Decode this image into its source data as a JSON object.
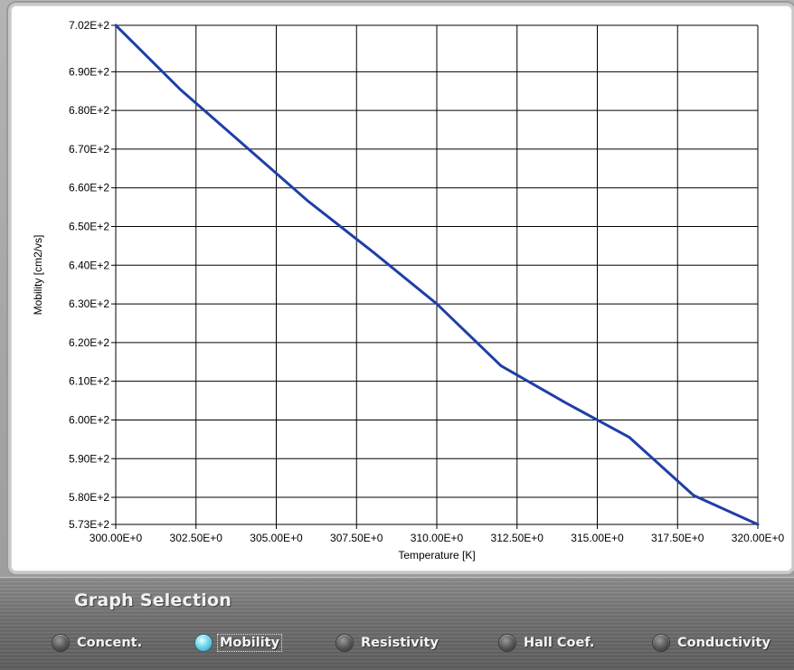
{
  "chart_data": {
    "type": "line",
    "xlabel": "Temperature [K]",
    "ylabel": "Mobility [cm2/vs]",
    "xlim": [
      300,
      320
    ],
    "ylim": [
      573,
      702
    ],
    "x_ticks": [
      300,
      302.5,
      305,
      307.5,
      310,
      312.5,
      315,
      317.5,
      320
    ],
    "x_tick_labels": [
      "300.00E+0",
      "302.50E+0",
      "305.00E+0",
      "307.50E+0",
      "310.00E+0",
      "312.50E+0",
      "315.00E+0",
      "317.50E+0",
      "320.00E+0"
    ],
    "y_ticks": [
      702,
      690,
      680,
      670,
      660,
      650,
      640,
      630,
      620,
      610,
      600,
      590,
      580,
      573
    ],
    "y_tick_labels": [
      "7.02E+2",
      "6.90E+2",
      "6.80E+2",
      "6.70E+2",
      "6.60E+2",
      "6.50E+2",
      "6.40E+2",
      "6.30E+2",
      "6.20E+2",
      "6.10E+2",
      "6.00E+2",
      "5.90E+2",
      "5.80E+2",
      "5.73E+2"
    ],
    "grid": true,
    "series": [
      {
        "color": "#1f3fa8",
        "x": [
          300,
          302,
          304,
          306,
          308,
          310,
          312,
          314,
          316,
          318,
          320
        ],
        "y": [
          702,
          685.5,
          671,
          656.5,
          643.5,
          630,
          614,
          604.5,
          595.5,
          580.5,
          573
        ]
      }
    ]
  },
  "graph_selection": {
    "title": "Graph Selection",
    "options": [
      {
        "label": "Concent.",
        "selected": false
      },
      {
        "label": "Mobility",
        "selected": true
      },
      {
        "label": "Resistivity",
        "selected": false
      },
      {
        "label": "Hall Coef.",
        "selected": false
      },
      {
        "label": "Conductivity",
        "selected": false
      }
    ]
  },
  "colors": {
    "series_line": "#1f3fa8",
    "grid": "#000000",
    "selected_radio": "#5fd0e4"
  }
}
